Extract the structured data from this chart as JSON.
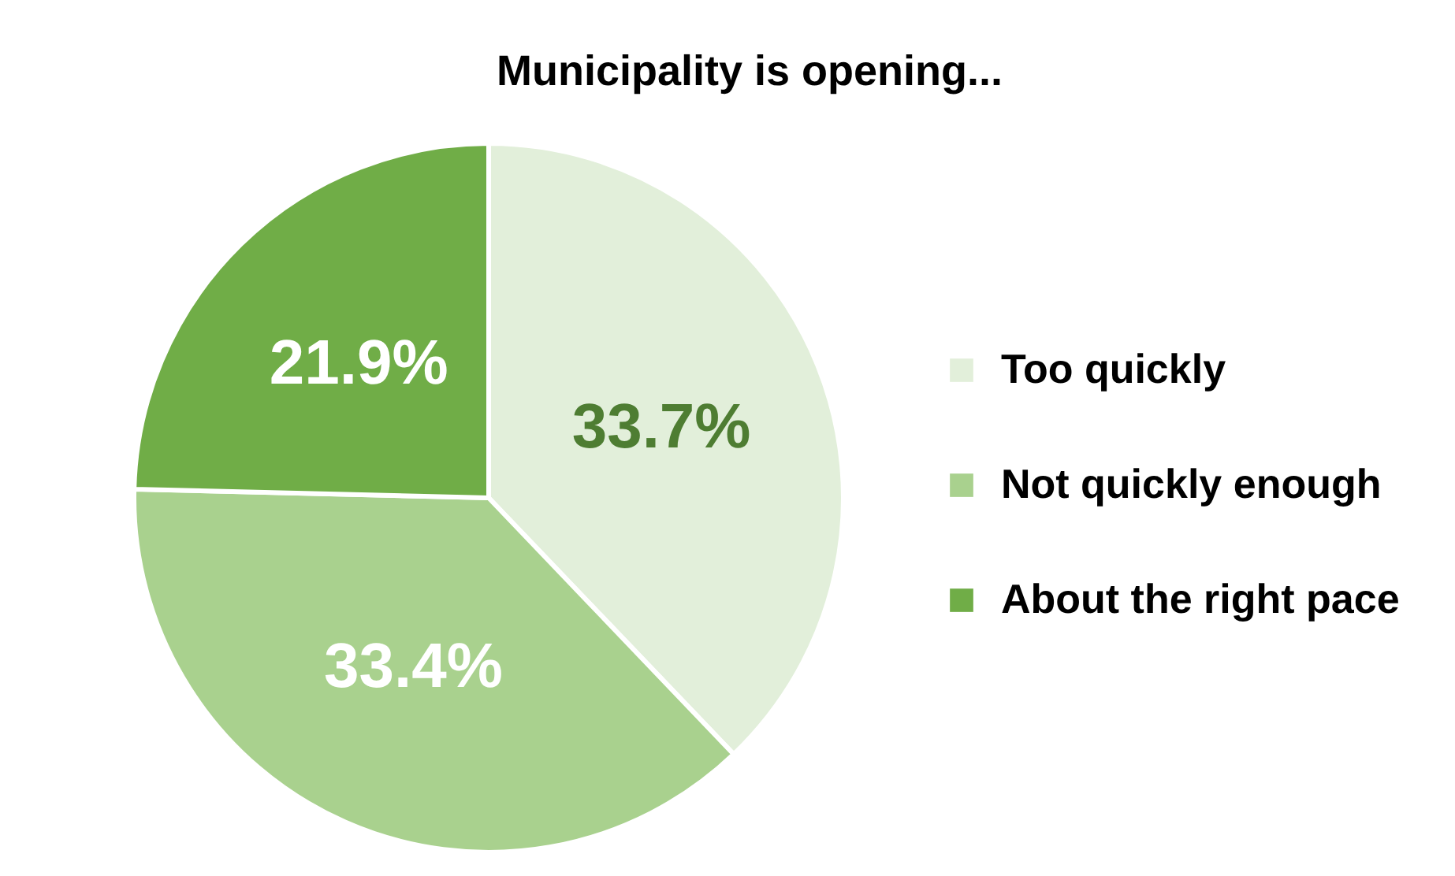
{
  "chart_data": {
    "type": "pie",
    "title": "Municipality is opening...",
    "categories": [
      "Too quickly",
      "Not quickly enough",
      "About the right pace"
    ],
    "values": [
      33.7,
      33.4,
      21.9
    ],
    "colors": [
      "#e2efda",
      "#a9d18e",
      "#70ad47"
    ],
    "value_labels": [
      "33.7%",
      "33.4%",
      "21.9%"
    ],
    "legend": "right"
  }
}
